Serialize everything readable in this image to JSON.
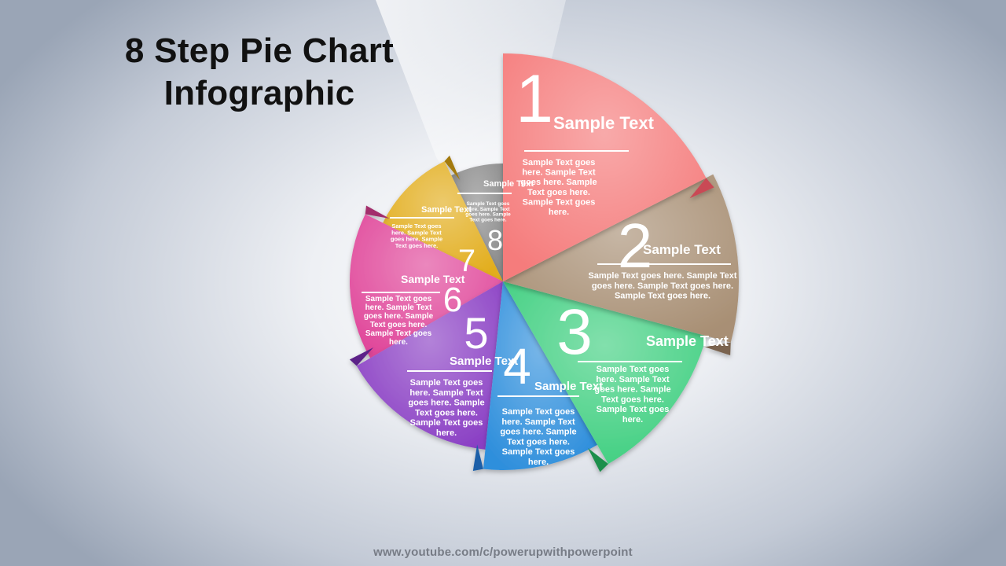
{
  "title": {
    "line1": "8 Step Pie Chart",
    "line2": "Infographic"
  },
  "footer": "www.youtube.com/c/powerupwithpowerpoint",
  "segments": [
    {
      "number": "1",
      "heading": "Sample Text",
      "body": [
        "Sample Text goes",
        "here. Sample Text",
        "goes here. Sample",
        "Text goes here.",
        "Sample Text goes",
        "here."
      ],
      "color": "#f57c7c",
      "dark": "#c94a55"
    },
    {
      "number": "2",
      "heading": "Sample Text",
      "body": [
        "Sample Text goes here. Sample Text",
        "goes here. Sample Text goes here.",
        "Sample Text goes here."
      ],
      "color": "#a88f74",
      "dark": "#7a6450"
    },
    {
      "number": "3",
      "heading": "Sample Text",
      "body": [
        "Sample Text goes",
        "here. Sample Text",
        "goes here. Sample",
        "Text goes here.",
        "Sample Text goes",
        "here."
      ],
      "color": "#3fcf80",
      "dark": "#1f8f4c"
    },
    {
      "number": "4",
      "heading": "Sample Text",
      "body": [
        "Sample Text goes",
        "here. Sample Text",
        "goes here. Sample",
        "Text goes here.",
        "Sample Text goes",
        "here."
      ],
      "color": "#2f8fdc",
      "dark": "#1c5fa8"
    },
    {
      "number": "5",
      "heading": "Sample Text",
      "body": [
        "Sample Text goes",
        "here. Sample Text",
        "goes here. Sample",
        "Text goes here.",
        "Sample Text goes",
        "here."
      ],
      "color": "#8a3fc4",
      "dark": "#5b2488"
    },
    {
      "number": "6",
      "heading": "Sample Text",
      "body": [
        "Sample Text goes",
        "here. Sample Text",
        "goes here. Sample",
        "Text goes here.",
        "Sample Text goes",
        "here."
      ],
      "color": "#e0479a",
      "dark": "#a32d6c"
    },
    {
      "number": "7",
      "heading": "Sample Text",
      "body": [
        "Sample Text goes",
        "here. Sample Text",
        "goes here. Sample",
        "Text goes here."
      ],
      "color": "#e2ad1c",
      "dark": "#a37a0c"
    },
    {
      "number": "8",
      "heading": "Sample Text",
      "body": [
        "Sample Text goes",
        "here. Sample Text",
        "goes here. Sample",
        "Text goes here."
      ],
      "color": "#8a8a8a",
      "dark": "#5a5a5a"
    }
  ]
}
